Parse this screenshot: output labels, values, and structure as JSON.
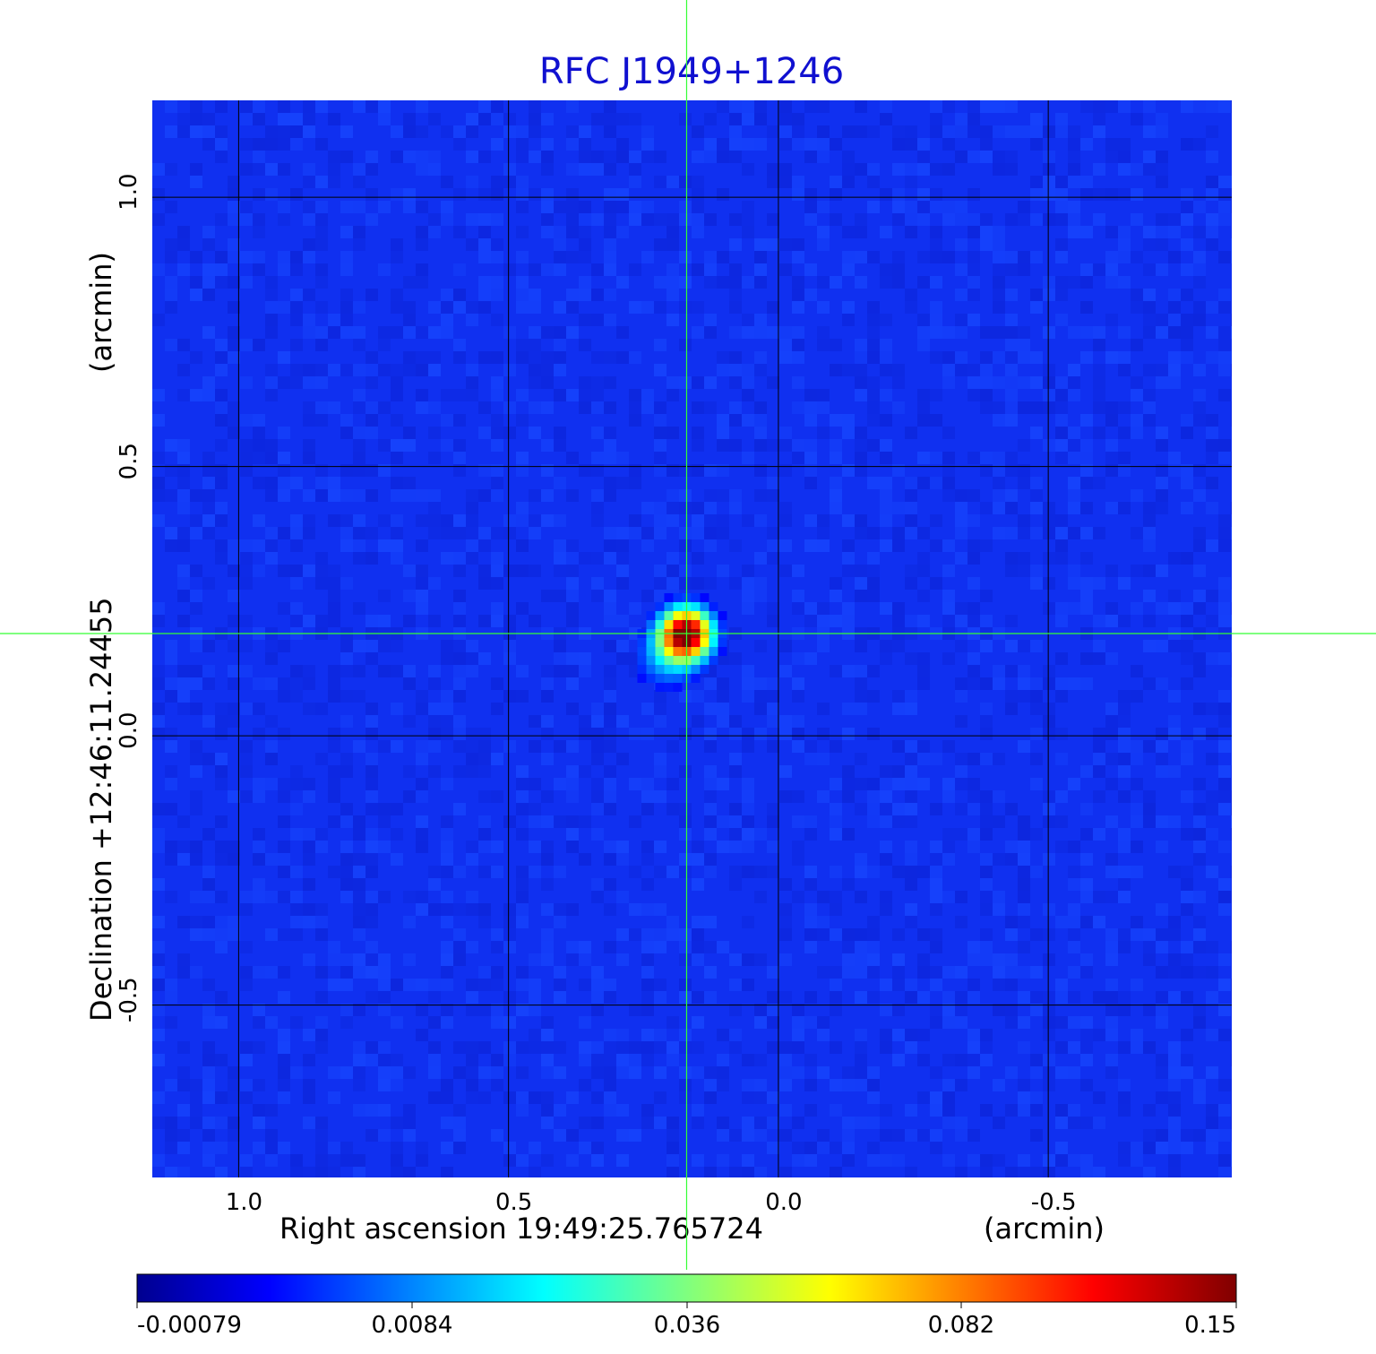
{
  "chart_data": {
    "type": "heatmap",
    "title": "RFC J1949+1246",
    "xlabel_left": "Right ascension  19:49:25.765724",
    "xlabel_unit": "(arcmin)",
    "ylabel_left": "Declination  +12:46:11.24455",
    "ylabel_unit": "(arcmin)",
    "x_ticks": [
      "1.0",
      "0.5",
      "0.0",
      "-0.5"
    ],
    "x_tick_values": [
      1.0,
      0.5,
      0.0,
      -0.5
    ],
    "y_ticks": [
      "1.0",
      "0.5",
      "0.0",
      "-0.5"
    ],
    "y_tick_values": [
      1.0,
      0.5,
      0.0,
      -0.5
    ],
    "xlim": [
      1.16,
      -0.84
    ],
    "ylim": [
      -0.82,
      1.18
    ],
    "grid": true,
    "crosshair": {
      "x": 0.17,
      "y": 0.19
    },
    "peak": {
      "x": 0.17,
      "y": 0.19,
      "value": 0.15,
      "note_sigma_arcmin": 0.035
    },
    "background_value": 0.003,
    "colorbar": {
      "orientation": "horizontal",
      "position": "bottom",
      "tick_labels": [
        "-0.00079",
        "0.0084",
        "0.036",
        "0.082",
        "0.15"
      ],
      "min": -0.00079,
      "max": 0.15,
      "colormap": "jet"
    },
    "colors": {
      "title": "#1010d0",
      "grid": "#000000",
      "crosshair": "#33ff33",
      "background": "#1030f0"
    }
  }
}
